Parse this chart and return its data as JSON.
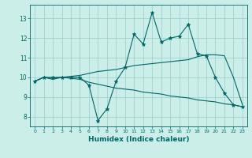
{
  "xlabel": "Humidex (Indice chaleur)",
  "background_color": "#cceee8",
  "line_color": "#006666",
  "grid_color": "#99cccc",
  "xlim": [
    -0.5,
    23.5
  ],
  "ylim": [
    7.5,
    13.7
  ],
  "yticks": [
    8,
    9,
    10,
    11,
    12,
    13
  ],
  "xticks": [
    0,
    1,
    2,
    3,
    4,
    5,
    6,
    7,
    8,
    9,
    10,
    11,
    12,
    13,
    14,
    15,
    16,
    17,
    18,
    19,
    20,
    21,
    22,
    23
  ],
  "series1_x": [
    0,
    1,
    2,
    3,
    4,
    5,
    6,
    7,
    8,
    9,
    10,
    11,
    12,
    13,
    14,
    15,
    16,
    17,
    18,
    19,
    20,
    21,
    22,
    23
  ],
  "series1_y": [
    9.8,
    10.0,
    10.0,
    10.0,
    10.0,
    10.0,
    9.6,
    7.8,
    8.4,
    9.8,
    10.5,
    12.2,
    11.7,
    13.3,
    11.8,
    12.0,
    12.1,
    12.7,
    11.2,
    11.1,
    10.0,
    9.2,
    8.6,
    8.5
  ],
  "series2_x": [
    0,
    1,
    2,
    3,
    4,
    5,
    6,
    7,
    8,
    9,
    10,
    11,
    12,
    13,
    14,
    15,
    16,
    17,
    18,
    19,
    20,
    21,
    22,
    23
  ],
  "series2_y": [
    9.8,
    10.0,
    9.95,
    10.0,
    10.05,
    10.1,
    10.2,
    10.3,
    10.35,
    10.4,
    10.5,
    10.6,
    10.65,
    10.7,
    10.75,
    10.8,
    10.85,
    10.9,
    11.05,
    11.15,
    11.15,
    11.1,
    10.0,
    8.6
  ],
  "series3_x": [
    0,
    1,
    2,
    3,
    4,
    5,
    6,
    7,
    8,
    9,
    10,
    11,
    12,
    13,
    14,
    15,
    16,
    17,
    18,
    19,
    20,
    21,
    22,
    23
  ],
  "series3_y": [
    9.8,
    10.0,
    9.9,
    10.0,
    9.95,
    9.9,
    9.75,
    9.65,
    9.55,
    9.45,
    9.4,
    9.35,
    9.25,
    9.2,
    9.15,
    9.05,
    9.0,
    8.95,
    8.85,
    8.8,
    8.75,
    8.65,
    8.6,
    8.5
  ]
}
